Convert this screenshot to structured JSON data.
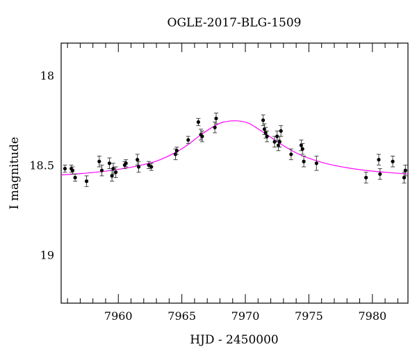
{
  "chart_data": {
    "type": "scatter",
    "title": "OGLE-2017-BLG-1509",
    "xlabel": "HJD - 2450000",
    "ylabel": "I magnitude",
    "xlim": [
      7955.5,
      7982.8
    ],
    "ylim": [
      19.27,
      17.82
    ],
    "y_inverted": true,
    "x_ticks": [
      7960,
      7965,
      7970,
      7975,
      7980
    ],
    "y_ticks": [
      18,
      18.5,
      19
    ],
    "grid": false,
    "legend": "none",
    "colors": {
      "points": "#000000",
      "model": "#ff00ff"
    },
    "series": [
      {
        "kind": "points_with_errorbars",
        "x": [
          7955.8,
          7956.3,
          7956.4,
          7956.6,
          7957.5,
          7958.5,
          7958.7,
          7959.3,
          7959.5,
          7959.6,
          7959.8,
          7960.5,
          7960.6,
          7961.5,
          7961.6,
          7962.4,
          7962.6,
          7964.5,
          7964.6,
          7965.5,
          7966.3,
          7966.5,
          7966.6,
          7967.6,
          7967.7,
          7971.4,
          7971.5,
          7971.6,
          7971.7,
          7972.3,
          7972.5,
          7972.6,
          7972.7,
          7972.8,
          7973.6,
          7974.4,
          7974.5,
          7974.6,
          7975.6,
          7979.5,
          7980.5,
          7980.6,
          7981.6,
          7982.5,
          7982.6
        ],
        "y": [
          18.52,
          18.52,
          18.53,
          18.57,
          18.59,
          18.48,
          18.53,
          18.49,
          18.56,
          18.52,
          18.54,
          18.5,
          18.49,
          18.47,
          18.51,
          18.5,
          18.51,
          18.44,
          18.42,
          18.36,
          18.26,
          18.33,
          18.34,
          18.29,
          18.24,
          18.25,
          18.3,
          18.32,
          18.34,
          18.37,
          18.34,
          18.39,
          18.37,
          18.31,
          18.44,
          18.39,
          18.41,
          18.48,
          18.49,
          18.57,
          18.47,
          18.55,
          18.48,
          18.57,
          18.53
        ],
        "err": [
          0.02,
          0.02,
          0.02,
          0.02,
          0.03,
          0.03,
          0.03,
          0.03,
          0.03,
          0.03,
          0.03,
          0.02,
          0.02,
          0.03,
          0.03,
          0.02,
          0.02,
          0.03,
          0.02,
          0.02,
          0.02,
          0.03,
          0.03,
          0.03,
          0.03,
          0.03,
          0.03,
          0.03,
          0.03,
          0.03,
          0.03,
          0.03,
          0.03,
          0.03,
          0.03,
          0.03,
          0.03,
          0.03,
          0.04,
          0.03,
          0.03,
          0.03,
          0.03,
          0.03,
          0.03
        ]
      },
      {
        "kind": "model_curve",
        "x": [
          7955.5,
          7957,
          7958.5,
          7960,
          7961.5,
          7963,
          7964.5,
          7965.5,
          7966.5,
          7967.5,
          7968.2,
          7969.2,
          7970.2,
          7971,
          7972,
          7973,
          7974,
          7975,
          7976.5,
          7978,
          7979.5,
          7981,
          7982.8
        ],
        "y": [
          18.555,
          18.548,
          18.538,
          18.524,
          18.505,
          18.478,
          18.43,
          18.385,
          18.331,
          18.285,
          18.262,
          18.253,
          18.265,
          18.298,
          18.345,
          18.392,
          18.432,
          18.462,
          18.494,
          18.515,
          18.53,
          18.54,
          18.55
        ]
      }
    ]
  }
}
